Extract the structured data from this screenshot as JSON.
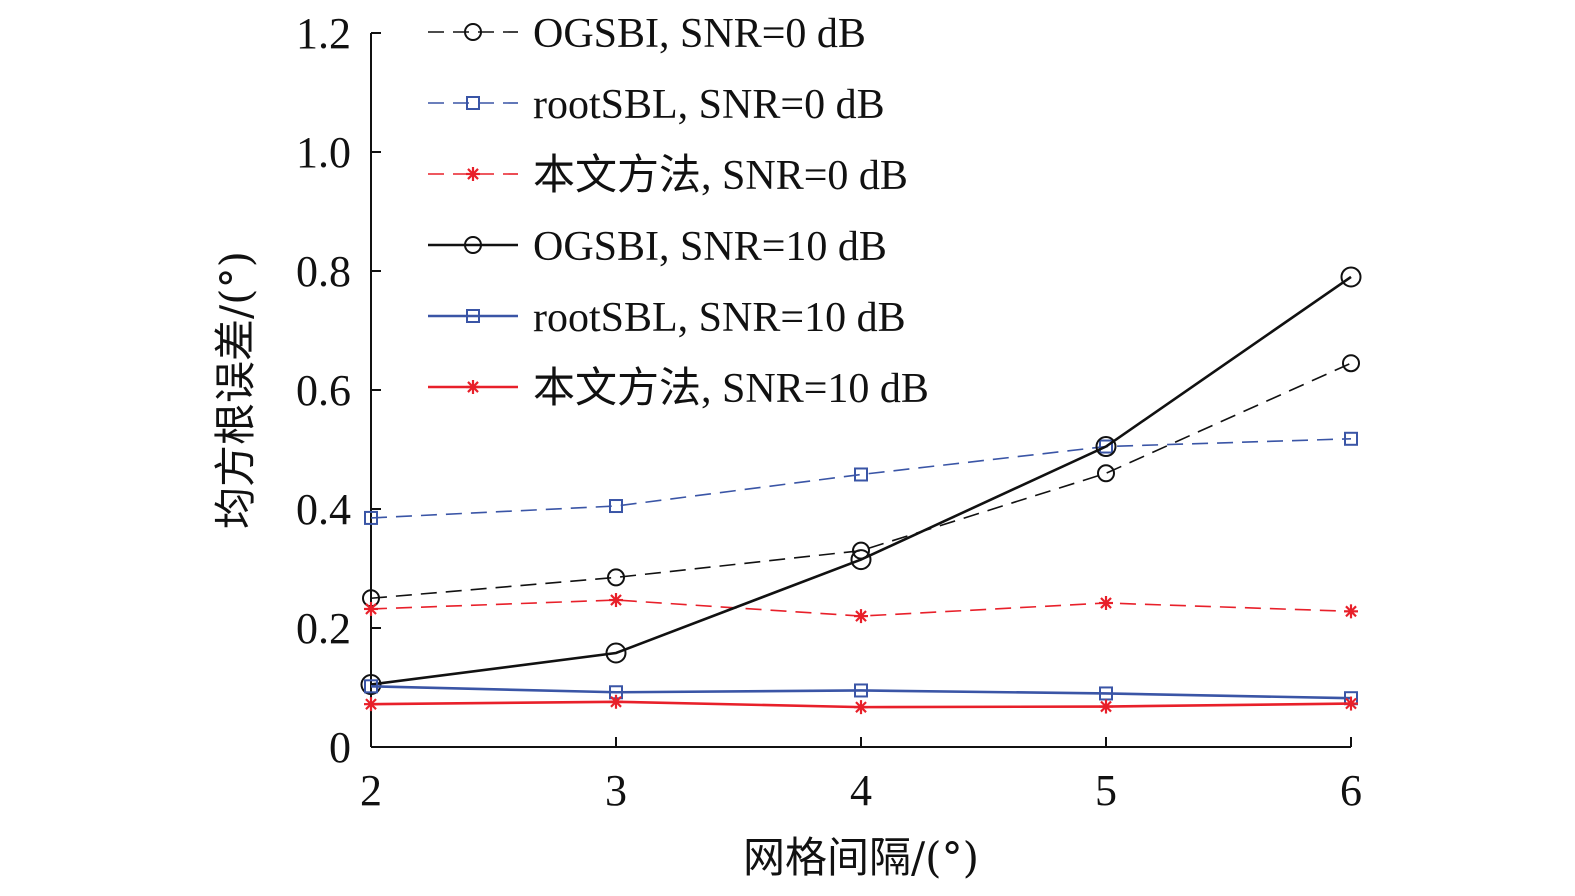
{
  "chart_data": {
    "type": "line",
    "title": "",
    "xlabel": "网格间隔/(°)",
    "ylabel": "均方根误差/(°)",
    "x": [
      2,
      3,
      4,
      5,
      6
    ],
    "xlim": [
      2,
      6
    ],
    "ylim": [
      0,
      1.2
    ],
    "xticks": [
      "2",
      "3",
      "4",
      "5",
      "6"
    ],
    "yticks": [
      {
        "value": 0,
        "label": "0"
      },
      {
        "value": 0.2,
        "label": "0.2"
      },
      {
        "value": 0.4,
        "label": "0.4"
      },
      {
        "value": 0.6,
        "label": "0.6"
      },
      {
        "value": 0.8,
        "label": "0.8"
      },
      {
        "value": 1.0,
        "label": "1.0"
      },
      {
        "value": 1.2,
        "label": "1.2"
      }
    ],
    "grid": false,
    "legend_position": "top-left",
    "series": [
      {
        "name": "OGSBI, SNR=0 dB",
        "values": [
          0.25,
          0.285,
          0.33,
          0.46,
          0.645
        ],
        "color": "#111111",
        "dash": "dashed",
        "marker": "circle",
        "marker_size": "small"
      },
      {
        "name": "rootSBL, SNR=0 dB",
        "values": [
          0.385,
          0.405,
          0.458,
          0.505,
          0.518
        ],
        "color": "#3a55a6",
        "dash": "dashed",
        "marker": "square",
        "marker_size": "small"
      },
      {
        "name": "本文方法, SNR=0 dB",
        "values": [
          0.232,
          0.247,
          0.22,
          0.242,
          0.228
        ],
        "color": "#e8202a",
        "dash": "dashed",
        "marker": "star",
        "marker_size": "small"
      },
      {
        "name": "OGSBI, SNR=10 dB",
        "values": [
          0.105,
          0.158,
          0.315,
          0.505,
          0.79
        ],
        "color": "#111111",
        "dash": "solid",
        "marker": "circle",
        "marker_size": "large"
      },
      {
        "name": "rootSBL, SNR=10 dB",
        "values": [
          0.102,
          0.092,
          0.095,
          0.09,
          0.082
        ],
        "color": "#3a55a6",
        "dash": "solid",
        "marker": "square",
        "marker_size": "small"
      },
      {
        "name": "本文方法, SNR=10 dB",
        "values": [
          0.072,
          0.076,
          0.067,
          0.068,
          0.073
        ],
        "color": "#e8202a",
        "dash": "solid",
        "marker": "star",
        "marker_size": "small"
      }
    ]
  }
}
